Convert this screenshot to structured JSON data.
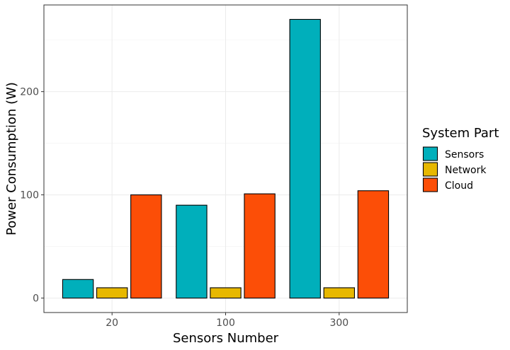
{
  "chart_data": {
    "type": "bar",
    "xlabel": "Sensors Number",
    "ylabel": "Power Consumption (W)",
    "categories": [
      "20",
      "100",
      "300"
    ],
    "series": [
      {
        "name": "Sensors",
        "color": "#00AFBB",
        "values": [
          18,
          90,
          270
        ]
      },
      {
        "name": "Network",
        "color": "#E7B800",
        "values": [
          10,
          10,
          10
        ]
      },
      {
        "name": "Cloud",
        "color": "#FC4E07",
        "values": [
          100,
          101,
          104
        ]
      }
    ],
    "ylim": [
      -14,
      284
    ],
    "yticks": [
      0,
      100,
      200
    ],
    "ytick_labels": [
      "0",
      "100",
      "200"
    ],
    "grid": true,
    "legend": {
      "title": "System Part",
      "position": "right"
    },
    "theme": "bw"
  }
}
